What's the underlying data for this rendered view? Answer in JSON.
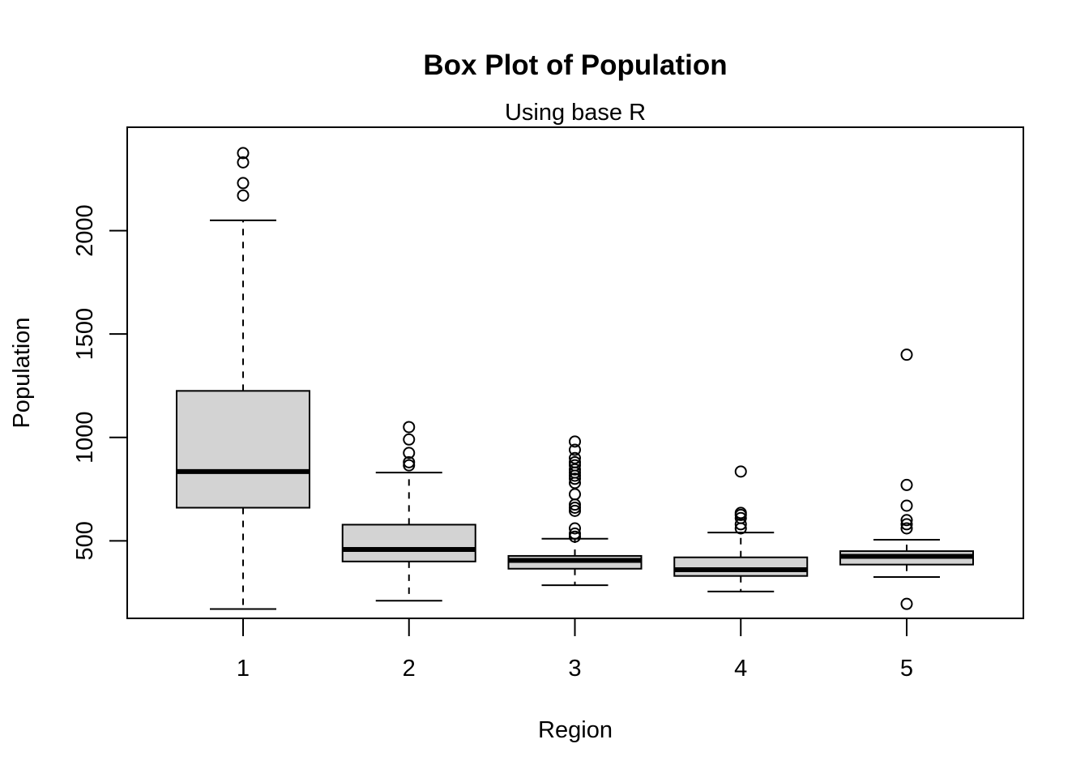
{
  "chart_data": {
    "type": "boxplot",
    "title": "Box Plot of Population",
    "subtitle": "Using base R",
    "xlabel": "Region",
    "ylabel": "Population",
    "categories": [
      "1",
      "2",
      "3",
      "4",
      "5"
    ],
    "y_ticks": [
      500,
      1000,
      1500,
      2000
    ],
    "ylim": [
      125,
      2500
    ],
    "box_fill": "#d3d3d3",
    "line_color": "#000000",
    "boxes": [
      {
        "category": "1",
        "whisker_low": 170,
        "q1": 660,
        "median": 835,
        "q3": 1225,
        "whisker_high": 2050,
        "outliers": [
          2170,
          2230,
          2330,
          2375
        ]
      },
      {
        "category": "2",
        "whisker_low": 210,
        "q1": 400,
        "median": 458,
        "q3": 578,
        "whisker_high": 830,
        "outliers": [
          865,
          880,
          925,
          990,
          1050
        ]
      },
      {
        "category": "3",
        "whisker_low": 285,
        "q1": 365,
        "median": 405,
        "q3": 427,
        "whisker_high": 510,
        "outliers": [
          520,
          535,
          560,
          645,
          660,
          675,
          725,
          780,
          800,
          815,
          830,
          845,
          865,
          880,
          900,
          940,
          980
        ]
      },
      {
        "category": "4",
        "whisker_low": 255,
        "q1": 330,
        "median": 360,
        "q3": 420,
        "whisker_high": 540,
        "outliers": [
          560,
          580,
          610,
          625,
          635,
          835
        ]
      },
      {
        "category": "5",
        "whisker_low": 325,
        "q1": 385,
        "median": 425,
        "q3": 450,
        "whisker_high": 505,
        "outliers": [
          195,
          560,
          580,
          600,
          670,
          770,
          1400
        ]
      }
    ]
  }
}
